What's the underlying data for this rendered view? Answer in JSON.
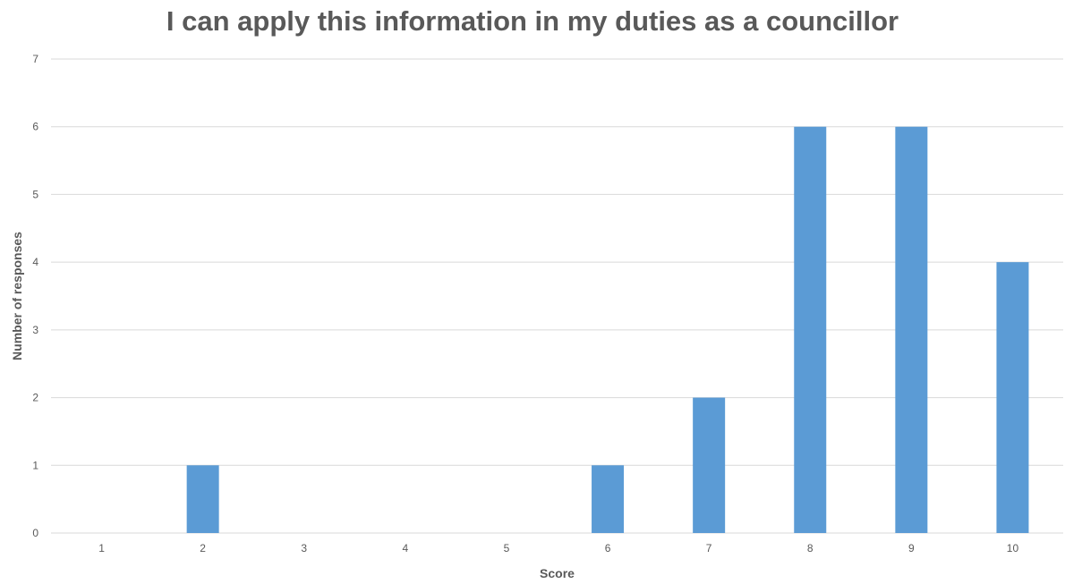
{
  "chart_data": {
    "type": "bar",
    "title": "I can apply this information in my duties as a councillor",
    "xlabel": "Score",
    "ylabel": "Number of responses",
    "categories": [
      "1",
      "2",
      "3",
      "4",
      "5",
      "6",
      "7",
      "8",
      "9",
      "10"
    ],
    "values": [
      0,
      1,
      0,
      0,
      0,
      1,
      2,
      6,
      6,
      4
    ],
    "ylim": [
      0,
      7
    ],
    "yticks": [
      "0",
      "1",
      "2",
      "3",
      "4",
      "5",
      "6",
      "7"
    ],
    "grid": true,
    "legend": "none",
    "colors": {
      "bar": "#5b9bd5",
      "grid": "#d9d9d9",
      "text": "#595959"
    }
  }
}
